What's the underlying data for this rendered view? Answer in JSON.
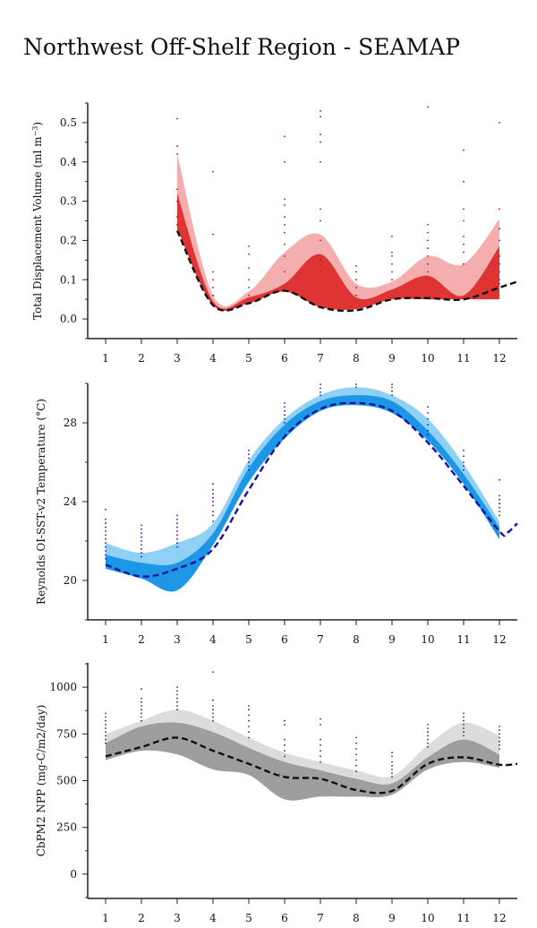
{
  "title": "Northwest Off-Shelf Region - SEAMAP",
  "chart_data": [
    {
      "type": "area",
      "ylabel_main": "Total Displacement Volume (ml m",
      "ylabel_sup": "−3",
      "ylabel_end": ")",
      "x": [
        3,
        4,
        5,
        6,
        7,
        8,
        9,
        10,
        11,
        12
      ],
      "ylim": [
        -0.05,
        0.55
      ],
      "yticks": [
        0.0,
        0.1,
        0.2,
        0.3,
        0.4,
        0.5
      ],
      "ytick_labels": [
        "0.0",
        "0.1",
        "0.2",
        "0.3",
        "0.4",
        "0.5"
      ],
      "xticks": [
        1,
        2,
        3,
        4,
        5,
        6,
        7,
        8,
        9,
        10,
        11,
        12
      ],
      "xtick_labels": [
        "1",
        "2",
        "3",
        "4",
        "5",
        "6",
        "7",
        "8",
        "9",
        "10",
        "11",
        "12"
      ],
      "colors": {
        "outer": "#f4aeae",
        "inner": "#de3434",
        "points": "#9a1a1a",
        "line": "#111111"
      },
      "outer_band": {
        "lower": [
          0.23,
          0.035,
          0.04,
          0.07,
          0.03,
          0.025,
          0.05,
          0.05,
          0.05,
          0.05
        ],
        "upper": [
          0.42,
          0.06,
          0.07,
          0.17,
          0.215,
          0.09,
          0.095,
          0.16,
          0.14,
          0.255
        ]
      },
      "inner_band": {
        "lower": [
          0.23,
          0.035,
          0.04,
          0.07,
          0.03,
          0.025,
          0.05,
          0.05,
          0.05,
          0.05
        ],
        "upper": [
          0.32,
          0.045,
          0.055,
          0.09,
          0.165,
          0.055,
          0.075,
          0.11,
          0.06,
          0.185
        ]
      },
      "mean_line": {
        "x": [
          3,
          4,
          5,
          6,
          7,
          8,
          9,
          10,
          11,
          12,
          12.5
        ],
        "y": [
          0.225,
          0.035,
          0.04,
          0.072,
          0.03,
          0.022,
          0.05,
          0.053,
          0.05,
          0.08,
          0.095
        ]
      },
      "points": [
        [
          3,
          0.51
        ],
        [
          3,
          0.44
        ],
        [
          3,
          0.42
        ],
        [
          3,
          0.33
        ],
        [
          3,
          0.3
        ],
        [
          3,
          0.26
        ],
        [
          3,
          0.24
        ],
        [
          4,
          0.375
        ],
        [
          4,
          0.215
        ],
        [
          4,
          0.12
        ],
        [
          4,
          0.1
        ],
        [
          4,
          0.08
        ],
        [
          4,
          0.06
        ],
        [
          5,
          0.185
        ],
        [
          5,
          0.165
        ],
        [
          5,
          0.13
        ],
        [
          5,
          0.1
        ],
        [
          5,
          0.08
        ],
        [
          5,
          0.06
        ],
        [
          6,
          0.465
        ],
        [
          6,
          0.4
        ],
        [
          6,
          0.305
        ],
        [
          6,
          0.29
        ],
        [
          6,
          0.26
        ],
        [
          6,
          0.24
        ],
        [
          6,
          0.22
        ],
        [
          6,
          0.19
        ],
        [
          6,
          0.16
        ],
        [
          6,
          0.12
        ],
        [
          7,
          0.53
        ],
        [
          7,
          0.515
        ],
        [
          7,
          0.47
        ],
        [
          7,
          0.45
        ],
        [
          7,
          0.4
        ],
        [
          7,
          0.28
        ],
        [
          7,
          0.25
        ],
        [
          7,
          0.2
        ],
        [
          7,
          0.15
        ],
        [
          7,
          0.12
        ],
        [
          8,
          0.135
        ],
        [
          8,
          0.12
        ],
        [
          8,
          0.1
        ],
        [
          8,
          0.08
        ],
        [
          8,
          0.06
        ],
        [
          9,
          0.21
        ],
        [
          9,
          0.17
        ],
        [
          9,
          0.16
        ],
        [
          9,
          0.14
        ],
        [
          9,
          0.12
        ],
        [
          9,
          0.1
        ],
        [
          10,
          0.54
        ],
        [
          10,
          0.24
        ],
        [
          10,
          0.22
        ],
        [
          10,
          0.2
        ],
        [
          10,
          0.18
        ],
        [
          10,
          0.16
        ],
        [
          10,
          0.14
        ],
        [
          10,
          0.12
        ],
        [
          11,
          0.43
        ],
        [
          11,
          0.35
        ],
        [
          11,
          0.28
        ],
        [
          11,
          0.25
        ],
        [
          11,
          0.21
        ],
        [
          11,
          0.19
        ],
        [
          11,
          0.17
        ],
        [
          11,
          0.14
        ],
        [
          12,
          0.5
        ],
        [
          12,
          0.28
        ],
        [
          12,
          0.23
        ],
        [
          12,
          0.2
        ],
        [
          12,
          0.16
        ],
        [
          12,
          0.14
        ],
        [
          12,
          0.12
        ],
        [
          12,
          0.1
        ],
        [
          12,
          0.09
        ]
      ]
    },
    {
      "type": "area",
      "ylabel_main": "Reynolds OI-SST-v2 Temperature (°C)",
      "ylabel_sup": "",
      "ylabel_end": "",
      "x": [
        1,
        2,
        3,
        4,
        5,
        6,
        7,
        8,
        9,
        10,
        11,
        12
      ],
      "ylim": [
        18,
        30
      ],
      "yticks": [
        20,
        24,
        28
      ],
      "ytick_labels": [
        "20",
        "24",
        "28"
      ],
      "xticks": [
        1,
        2,
        3,
        4,
        5,
        6,
        7,
        8,
        9,
        10,
        11,
        12
      ],
      "xtick_labels": [
        "1",
        "2",
        "3",
        "4",
        "5",
        "6",
        "7",
        "8",
        "9",
        "10",
        "11",
        "12"
      ],
      "colors": {
        "outer": "#8fd0f5",
        "inner": "#1e96e6",
        "points": "#1c1cc8",
        "line": "#1414a0"
      },
      "outer_band": {
        "lower": [
          20.6,
          20.1,
          19.5,
          21.8,
          25.0,
          27.2,
          28.6,
          28.9,
          28.5,
          27.1,
          24.9,
          22.1
        ],
        "upper": [
          21.9,
          21.4,
          21.9,
          22.9,
          26.1,
          28.2,
          29.4,
          29.8,
          29.4,
          28.2,
          25.9,
          23.0
        ]
      },
      "inner_band": {
        "lower": [
          20.6,
          20.1,
          19.5,
          21.8,
          25.0,
          27.2,
          28.6,
          28.9,
          28.5,
          27.1,
          24.9,
          22.1
        ],
        "upper": [
          21.3,
          20.9,
          20.9,
          22.4,
          25.7,
          27.9,
          29.1,
          29.4,
          29.1,
          27.6,
          25.4,
          22.7
        ]
      },
      "mean_line": {
        "x": [
          1,
          2,
          3,
          4,
          5,
          6,
          7,
          8,
          9,
          10,
          11,
          12,
          12.2,
          12.5
        ],
        "y": [
          20.8,
          20.2,
          20.6,
          21.6,
          24.6,
          27.3,
          28.7,
          29.0,
          28.6,
          27.0,
          24.8,
          22.5,
          22.4,
          22.9
        ]
      },
      "points": [
        [
          1,
          23.6
        ],
        [
          1,
          23.1
        ],
        [
          1,
          22.9
        ],
        [
          1,
          22.7
        ],
        [
          1,
          22.5
        ],
        [
          1,
          22.3
        ],
        [
          1,
          22.1
        ],
        [
          1,
          21.9
        ],
        [
          1,
          21.7
        ],
        [
          1,
          21.5
        ],
        [
          1,
          21.3
        ],
        [
          1,
          21.1
        ],
        [
          2,
          22.8
        ],
        [
          2,
          22.6
        ],
        [
          2,
          22.4
        ],
        [
          2,
          22.2
        ],
        [
          2,
          22.0
        ],
        [
          2,
          21.8
        ],
        [
          2,
          21.6
        ],
        [
          2,
          21.4
        ],
        [
          2,
          21.2
        ],
        [
          3,
          23.3
        ],
        [
          3,
          23.1
        ],
        [
          3,
          22.9
        ],
        [
          3,
          22.7
        ],
        [
          3,
          22.5
        ],
        [
          3,
          22.3
        ],
        [
          3,
          22.1
        ],
        [
          3,
          21.9
        ],
        [
          3,
          21.7
        ],
        [
          4,
          24.9
        ],
        [
          4,
          24.6
        ],
        [
          4,
          24.4
        ],
        [
          4,
          24.2
        ],
        [
          4,
          24.0
        ],
        [
          4,
          23.8
        ],
        [
          4,
          23.5
        ],
        [
          4,
          23.3
        ],
        [
          4,
          23.0
        ],
        [
          5,
          26.6
        ],
        [
          5,
          26.4
        ],
        [
          5,
          26.2
        ],
        [
          5,
          26.0
        ],
        [
          5,
          25.8
        ],
        [
          5,
          25.6
        ],
        [
          6,
          29.0
        ],
        [
          6,
          28.8
        ],
        [
          6,
          28.6
        ],
        [
          6,
          28.4
        ],
        [
          6,
          28.2
        ],
        [
          6,
          28.0
        ],
        [
          7,
          29.95
        ],
        [
          7,
          29.75
        ],
        [
          7,
          29.55
        ],
        [
          7,
          29.4
        ],
        [
          8,
          29.95
        ],
        [
          8,
          29.8
        ],
        [
          9,
          29.95
        ],
        [
          9,
          29.8
        ],
        [
          9,
          29.6
        ],
        [
          9,
          29.4
        ],
        [
          10,
          28.8
        ],
        [
          10,
          28.5
        ],
        [
          10,
          28.2
        ],
        [
          10,
          27.9
        ],
        [
          10,
          27.6
        ],
        [
          10,
          27.4
        ],
        [
          11,
          26.6
        ],
        [
          11,
          26.3
        ],
        [
          11,
          26.0
        ],
        [
          11,
          25.8
        ],
        [
          11,
          25.6
        ],
        [
          12,
          25.1
        ],
        [
          12,
          24.3
        ],
        [
          12,
          24.1
        ],
        [
          12,
          23.9
        ],
        [
          12,
          23.7
        ],
        [
          12,
          23.5
        ],
        [
          12,
          23.3
        ]
      ]
    },
    {
      "type": "area",
      "ylabel_main": "CbPM2 NPP (mg-C/m2/day)",
      "ylabel_sup": "",
      "ylabel_end": "",
      "x": [
        1,
        2,
        3,
        4,
        5,
        6,
        7,
        8,
        9,
        10,
        11,
        12
      ],
      "ylim": [
        -130,
        1130
      ],
      "yticks": [
        0,
        250,
        500,
        750,
        1000
      ],
      "ytick_labels": [
        "0",
        "250",
        "500",
        "750",
        "1000"
      ],
      "xticks": [
        1,
        2,
        3,
        4,
        5,
        6,
        7,
        8,
        9,
        10,
        11,
        12
      ],
      "xtick_labels": [
        "1",
        "2",
        "3",
        "4",
        "5",
        "6",
        "7",
        "8",
        "9",
        "10",
        "11",
        "12"
      ],
      "colors": {
        "outer": "#dcdcdc",
        "inner": "#9e9e9e",
        "points": "#333333",
        "line": "#111111"
      },
      "outer_band": {
        "lower": [
          610,
          660,
          640,
          560,
          530,
          400,
          415,
          415,
          425,
          560,
          600,
          570
        ],
        "upper": [
          750,
          820,
          880,
          820,
          730,
          650,
          600,
          555,
          525,
          690,
          810,
          740
        ]
      },
      "inner_band": {
        "lower": [
          610,
          660,
          640,
          560,
          530,
          400,
          415,
          415,
          425,
          560,
          600,
          570
        ],
        "upper": [
          700,
          790,
          810,
          760,
          675,
          600,
          555,
          510,
          485,
          625,
          720,
          640
        ]
      },
      "mean_line": {
        "x": [
          1,
          2,
          3,
          4,
          5,
          6,
          7,
          8,
          9,
          10,
          11,
          12,
          12.5
        ],
        "y": [
          630,
          680,
          730,
          660,
          590,
          520,
          510,
          450,
          445,
          590,
          625,
          585,
          590
        ]
      },
      "points": [
        [
          1,
          860
        ],
        [
          1,
          840
        ],
        [
          1,
          820
        ],
        [
          1,
          800
        ],
        [
          1,
          780
        ],
        [
          1,
          760
        ],
        [
          1,
          740
        ],
        [
          1,
          720
        ],
        [
          1,
          700
        ],
        [
          2,
          990
        ],
        [
          2,
          940
        ],
        [
          2,
          920
        ],
        [
          2,
          900
        ],
        [
          2,
          880
        ],
        [
          2,
          860
        ],
        [
          2,
          840
        ],
        [
          2,
          820
        ],
        [
          3,
          1000
        ],
        [
          3,
          980
        ],
        [
          3,
          960
        ],
        [
          3,
          940
        ],
        [
          3,
          920
        ],
        [
          3,
          900
        ],
        [
          3,
          880
        ],
        [
          4,
          1080
        ],
        [
          4,
          930
        ],
        [
          4,
          900
        ],
        [
          4,
          880
        ],
        [
          4,
          860
        ],
        [
          4,
          840
        ],
        [
          4,
          820
        ],
        [
          5,
          900
        ],
        [
          5,
          880
        ],
        [
          5,
          850
        ],
        [
          5,
          820
        ],
        [
          5,
          790
        ],
        [
          5,
          760
        ],
        [
          5,
          730
        ],
        [
          6,
          820
        ],
        [
          6,
          800
        ],
        [
          6,
          720
        ],
        [
          6,
          690
        ],
        [
          6,
          660
        ],
        [
          6,
          630
        ],
        [
          7,
          830
        ],
        [
          7,
          800
        ],
        [
          7,
          720
        ],
        [
          7,
          690
        ],
        [
          7,
          660
        ],
        [
          7,
          630
        ],
        [
          7,
          600
        ],
        [
          8,
          730
        ],
        [
          8,
          700
        ],
        [
          8,
          670
        ],
        [
          8,
          640
        ],
        [
          8,
          610
        ],
        [
          8,
          580
        ],
        [
          8,
          550
        ],
        [
          9,
          650
        ],
        [
          9,
          630
        ],
        [
          9,
          600
        ],
        [
          9,
          580
        ],
        [
          9,
          560
        ],
        [
          9,
          540
        ],
        [
          9,
          520
        ],
        [
          10,
          800
        ],
        [
          10,
          780
        ],
        [
          10,
          760
        ],
        [
          10,
          740
        ],
        [
          10,
          720
        ],
        [
          10,
          700
        ],
        [
          10,
          680
        ],
        [
          11,
          860
        ],
        [
          11,
          840
        ],
        [
          11,
          820
        ],
        [
          11,
          800
        ],
        [
          11,
          780
        ],
        [
          11,
          760
        ],
        [
          11,
          740
        ],
        [
          12,
          790
        ],
        [
          12,
          770
        ],
        [
          12,
          750
        ],
        [
          12,
          730
        ],
        [
          12,
          710
        ],
        [
          12,
          690
        ],
        [
          12,
          670
        ]
      ]
    }
  ]
}
